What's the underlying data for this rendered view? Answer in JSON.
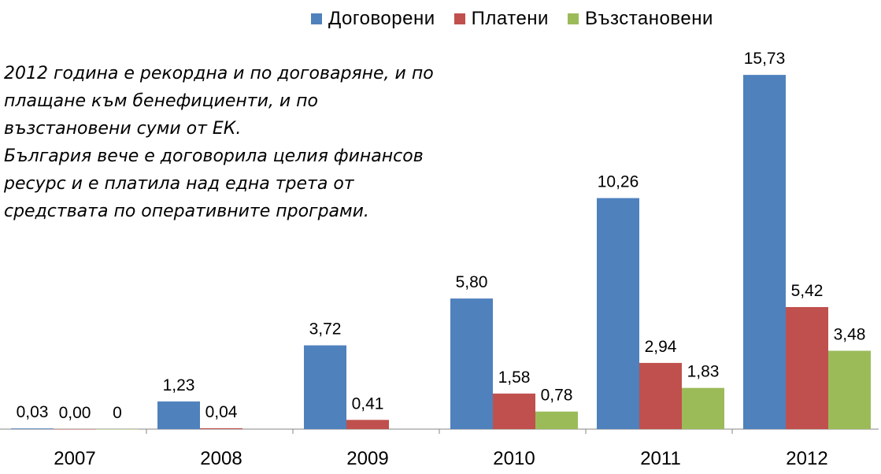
{
  "legend": [
    {
      "label": "Договорени",
      "color": "#4F81BD"
    },
    {
      "label": "Платени",
      "color": "#C0504D"
    },
    {
      "label": "Възстановени",
      "color": "#9BBB59"
    }
  ],
  "annotation": {
    "lines": [
      "2012 година е рекордна и по договаряне, и по",
      "плащане към бенефициенти, и по",
      "възстановени суми от ЕК.",
      "България вече е договорила целия финансов",
      "ресурс и е платила над една трета от",
      "средствата по оперативните програми."
    ]
  },
  "chart_data": {
    "type": "bar",
    "categories": [
      "2007",
      "2008",
      "2009",
      "2010",
      "2011",
      "2012"
    ],
    "series": [
      {
        "name": "Договорени",
        "color": "#4F81BD",
        "values": [
          0.03,
          1.23,
          3.72,
          5.8,
          10.26,
          15.73
        ],
        "labels": [
          "0,03",
          "1,23",
          "3,72",
          "5,80",
          "10,26",
          "15,73"
        ]
      },
      {
        "name": "Платени",
        "color": "#C0504D",
        "values": [
          0.0,
          0.04,
          0.41,
          1.58,
          2.94,
          5.42
        ],
        "labels": [
          "0,00",
          "0,04",
          "0,41",
          "1,58",
          "2,94",
          "5,42"
        ]
      },
      {
        "name": "Възстановени",
        "color": "#9BBB59",
        "values": [
          0,
          null,
          null,
          0.78,
          1.83,
          3.48
        ],
        "labels": [
          "0",
          "",
          "",
          "0,78",
          "1,83",
          "3,48"
        ]
      }
    ],
    "legend_position": "top",
    "ylim": [
      0,
      16
    ]
  }
}
